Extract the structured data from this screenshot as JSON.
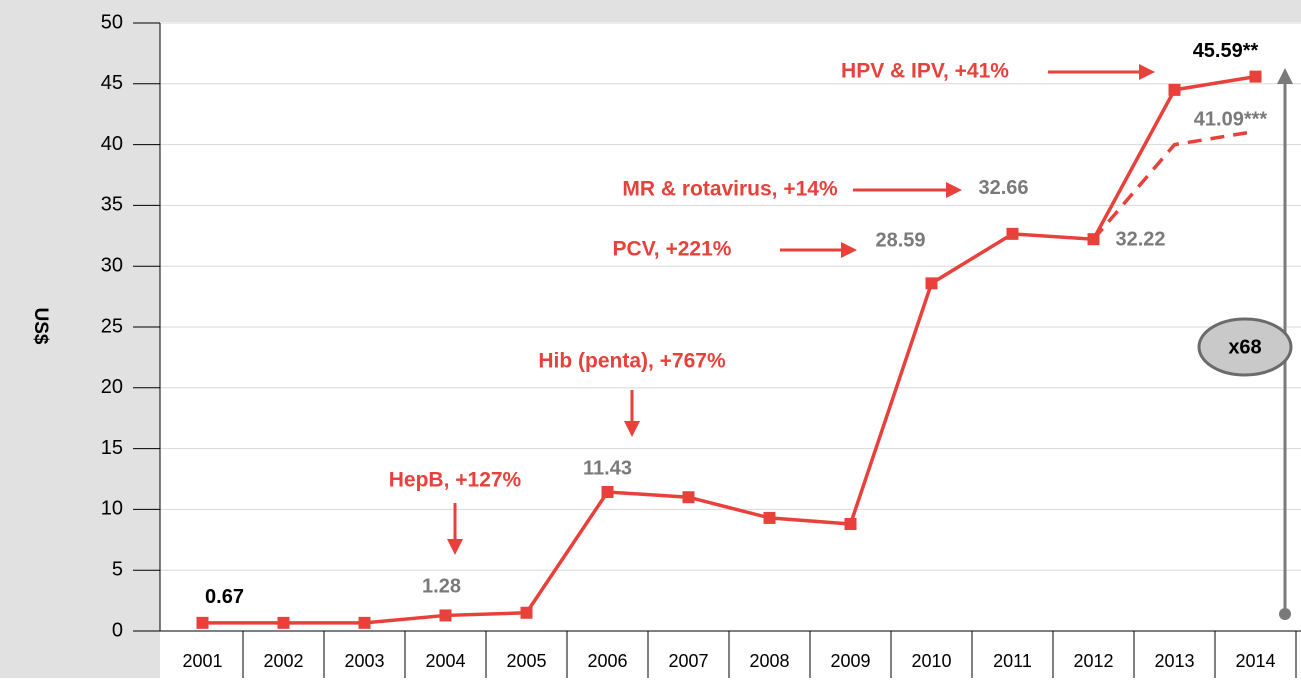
{
  "chart_data": {
    "type": "line",
    "y_label": "US$",
    "categories": [
      "2001",
      "2002",
      "2003",
      "2004",
      "2005",
      "2006",
      "2007",
      "2008",
      "2009",
      "2010",
      "2011",
      "2012",
      "2013",
      "2014"
    ],
    "series": [
      {
        "color": "#e8403a",
        "values": [
          0.67,
          0.67,
          0.67,
          1.28,
          1.5,
          11.43,
          11.0,
          9.3,
          8.8,
          28.59,
          32.66,
          32.22,
          44.5,
          45.59
        ],
        "value_labels": [
          "0.67",
          null,
          null,
          "1.28",
          null,
          "11.43",
          null,
          null,
          null,
          "28.59",
          "32.66",
          "32.22",
          null,
          "45.59**"
        ]
      },
      {
        "color": "#e8403a",
        "dashed": true,
        "values": [
          null,
          null,
          null,
          null,
          null,
          null,
          null,
          null,
          null,
          null,
          null,
          32.22,
          40.0,
          41.09
        ],
        "value_labels": [
          null,
          null,
          null,
          null,
          null,
          null,
          null,
          null,
          null,
          null,
          null,
          null,
          null,
          "41.09***"
        ]
      }
    ],
    "annotations": [
      "HepB, +127%",
      "Hib (penta), +767%",
      "PCV, +221%",
      "MR & rotavirus, +14%",
      "HPV & IPV, +41%",
      "x68"
    ],
    "ylim": [
      0,
      50
    ],
    "yticks": [
      0,
      5,
      10,
      15,
      20,
      25,
      30,
      35,
      40,
      45,
      50
    ],
    "grid": true
  }
}
